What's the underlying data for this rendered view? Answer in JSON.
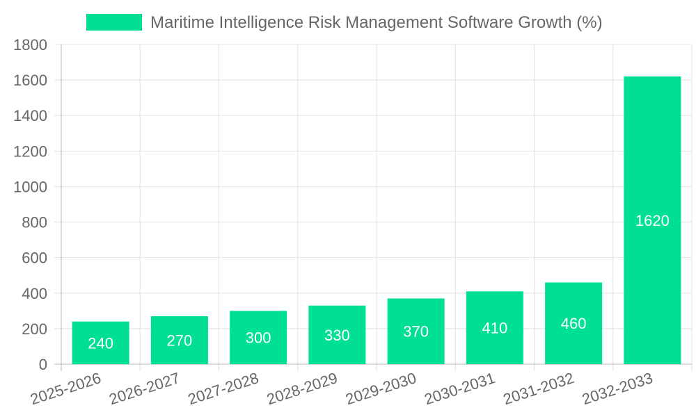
{
  "chart_data": {
    "type": "bar",
    "categories": [
      "2025-2026",
      "2026-2027",
      "2027-2028",
      "2028-2029",
      "2029-2030",
      "2030-2031",
      "2031-2032",
      "2032-2033"
    ],
    "series": [
      {
        "name": "Maritime Intelligence Risk Management Software Growth (%)",
        "values": [
          240,
          270,
          300,
          330,
          370,
          410,
          460,
          1620
        ]
      }
    ],
    "ylim": [
      0,
      1800
    ],
    "yticks": [
      "0",
      "200",
      "400",
      "600",
      "800",
      "1000",
      "1200",
      "1400",
      "1600",
      "1800"
    ],
    "grid": true,
    "legend_position": "top",
    "data_labels": [
      "240",
      "270",
      "300",
      "330",
      "370",
      "410",
      "460",
      "1620"
    ],
    "colors": {
      "bar": "#00e092",
      "grid": "#e0e0e0",
      "text": "#666666",
      "label": "#ffffff"
    }
  }
}
